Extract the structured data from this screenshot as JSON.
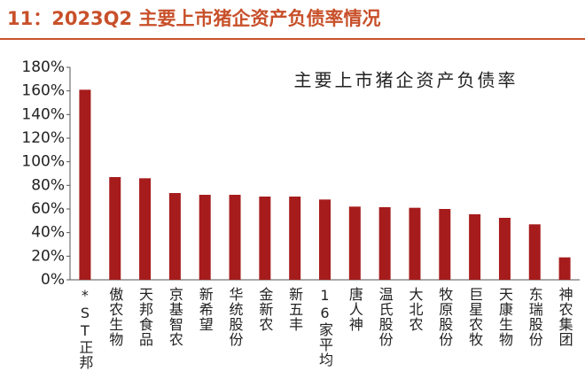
{
  "chart_data": {
    "type": "bar",
    "title": "11：2023Q2 主要上市猪企资产负债率情况",
    "subtitle": "主要上市猪企资产负债率",
    "categories": [
      "*ST正邦",
      "傲农生物",
      "天邦食品",
      "京基智农",
      "新希望",
      "华统股份",
      "金新农",
      "新五丰",
      "16家平均",
      "唐人神",
      "温氏股份",
      "大北农",
      "牧原股份",
      "巨星农牧",
      "天康生物",
      "东瑞股份",
      "神农集团"
    ],
    "values": [
      161,
      87,
      86,
      73.5,
      72,
      72,
      70.5,
      70.5,
      68,
      62,
      61.5,
      61,
      60,
      55.5,
      52.5,
      47,
      19
    ],
    "color": "#a61c1c",
    "ylim": [
      0,
      180
    ],
    "yticks": [
      {
        "value": 0,
        "label": "0%"
      },
      {
        "value": 20,
        "label": "20%"
      },
      {
        "value": 40,
        "label": "40%"
      },
      {
        "value": 60,
        "label": "60%"
      },
      {
        "value": 80,
        "label": "80%"
      },
      {
        "value": 100,
        "label": "100%"
      },
      {
        "value": 120,
        "label": "120%"
      },
      {
        "value": 140,
        "label": "140%"
      },
      {
        "value": 160,
        "label": "160%"
      },
      {
        "value": 180,
        "label": "180%"
      }
    ],
    "grid": false
  }
}
